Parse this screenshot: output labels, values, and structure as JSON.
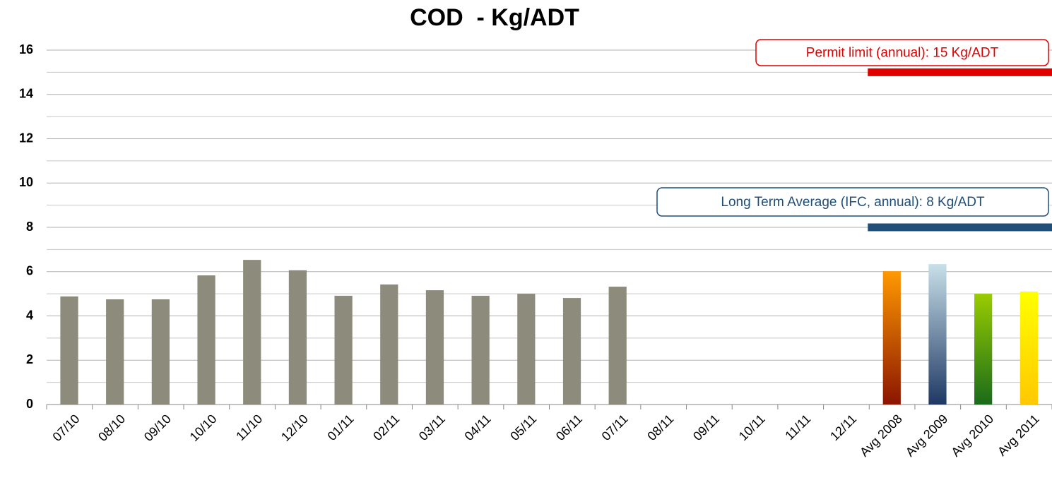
{
  "chart_data": {
    "type": "bar",
    "title": "COD  - Kg/ADT",
    "categories": [
      "07/10",
      "08/10",
      "09/10",
      "10/10",
      "11/10",
      "12/10",
      "01/11",
      "02/11",
      "03/11",
      "04/11",
      "05/11",
      "06/11",
      "07/11",
      "08/11",
      "09/11",
      "10/11",
      "11/11",
      "12/11",
      "Avg 2008",
      "Avg 2009",
      "Avg 2010",
      "Avg 2011"
    ],
    "values": [
      4.88,
      4.75,
      4.75,
      5.83,
      6.53,
      6.06,
      4.91,
      5.42,
      5.16,
      4.91,
      5.0,
      4.81,
      5.32,
      null,
      null,
      null,
      null,
      null,
      6.02,
      6.34,
      5.0,
      5.1
    ],
    "colors": [
      "#8c8b7c",
      "#8c8b7c",
      "#8c8b7c",
      "#8c8b7c",
      "#8c8b7c",
      "#8c8b7c",
      "#8c8b7c",
      "#8c8b7c",
      "#8c8b7c",
      "#8c8b7c",
      "#8c8b7c",
      "#8c8b7c",
      "#8c8b7c",
      "#8c8b7c",
      "#8c8b7c",
      "#8c8b7c",
      "#8c8b7c",
      "#8c8b7c",
      {
        "top": "#ff9900",
        "bottom": "#8b1500"
      },
      {
        "top": "#c8e0e8",
        "bottom": "#1f3864"
      },
      {
        "top": "#99cc00",
        "bottom": "#1a6b1a"
      },
      {
        "top": "#ffff00",
        "bottom": "#ffc800"
      }
    ],
    "ylim": [
      0,
      16
    ],
    "yticks": [
      0,
      2,
      4,
      6,
      8,
      10,
      12,
      14,
      16
    ],
    "y_minor_ticks": [
      1,
      3,
      5,
      7,
      9,
      11,
      13,
      15
    ],
    "grid": true,
    "annotations": [
      {
        "text": "Permit limit (annual): 15 Kg/ADT",
        "value": 15,
        "color": "#e00000"
      },
      {
        "text": "Long Term Average (IFC, annual): 8 Kg/ADT",
        "value": 8,
        "color": "#1f4e79"
      }
    ]
  }
}
